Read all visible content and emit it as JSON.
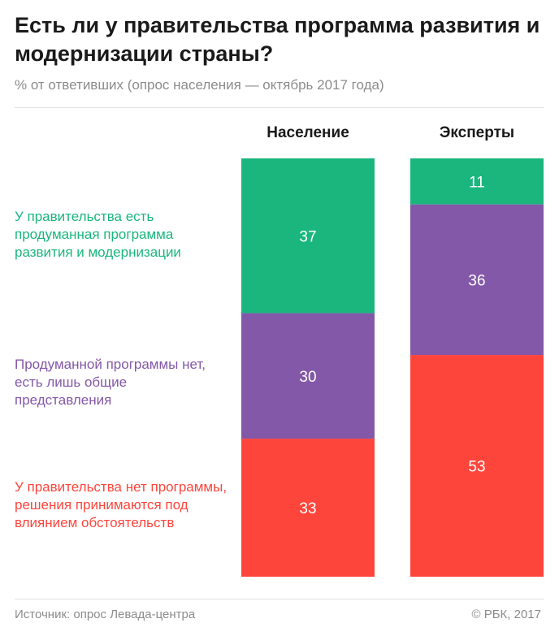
{
  "title": "Есть ли у правительства программа развития и модернизации страны?",
  "subtitle": "% от ответивших (опрос населения — октябрь 2017 года)",
  "chart_data": {
    "type": "bar",
    "stacked": true,
    "normalized_to": 100,
    "categories": [
      "Население",
      "Эксперты"
    ],
    "series": [
      {
        "name": "У правительства есть продуманная программа развития и модернизации",
        "color": "#1ab67e",
        "values": [
          37,
          11
        ]
      },
      {
        "name": "Продуманной программы нет, есть лишь общие представления",
        "color": "#8358a8",
        "values": [
          30,
          36
        ]
      },
      {
        "name": "У правительства нет программы, решения принимаются под влиянием обстоятельств",
        "color": "#fe453c",
        "values": [
          33,
          53
        ]
      }
    ],
    "value_label_color": "#ffffff",
    "grid": false,
    "legend": "left"
  },
  "footer": {
    "source": "Источник: опрос Левада-центра",
    "copyright": "© РБК, 2017"
  }
}
